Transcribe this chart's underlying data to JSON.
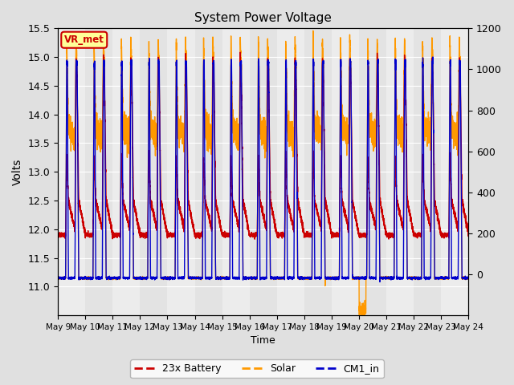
{
  "title": "System Power Voltage",
  "xlabel": "Time",
  "ylabel": "Volts",
  "ylim_left": [
    10.5,
    15.5
  ],
  "ylim_right": [
    -200,
    1200
  ],
  "background_color": "#e0e0e0",
  "plot_bg_color": "#e8e8e8",
  "x_ticks": [
    0,
    1,
    2,
    3,
    4,
    5,
    6,
    7,
    8,
    9,
    10,
    11,
    12,
    13,
    14,
    15
  ],
  "x_tick_labels": [
    "May 9",
    "May 10",
    "May 11",
    "May 12",
    "May 13",
    "May 14",
    "May 15",
    "May 16",
    "May 17",
    "May 18",
    "May 19",
    "May 20",
    "May 21",
    "May 22",
    "May 23",
    "May 24"
  ],
  "legend_labels": [
    "23x Battery",
    "Solar",
    "CM1_in"
  ],
  "legend_colors": [
    "#cc0000",
    "#ff9900",
    "#0000cc"
  ],
  "vr_met_text": "VR_met",
  "vr_met_bg": "#ffff99",
  "vr_met_border": "#cc0000",
  "battery_color": "#cc0000",
  "solar_color": "#ff9900",
  "cm1_color": "#0000cc",
  "grid_color": "#ffffff",
  "n_days": 15,
  "pts_per_day": 480,
  "night_batt": 11.9,
  "night_solar": 11.15,
  "night_cm1": 11.15,
  "day_batt_peak": 13.3,
  "day_batt_mid": 12.0,
  "day_solar_peak": 15.3,
  "day_solar_plateau": 13.7,
  "day_cm1_peak": 14.9,
  "day_cm1_flat": 11.15
}
